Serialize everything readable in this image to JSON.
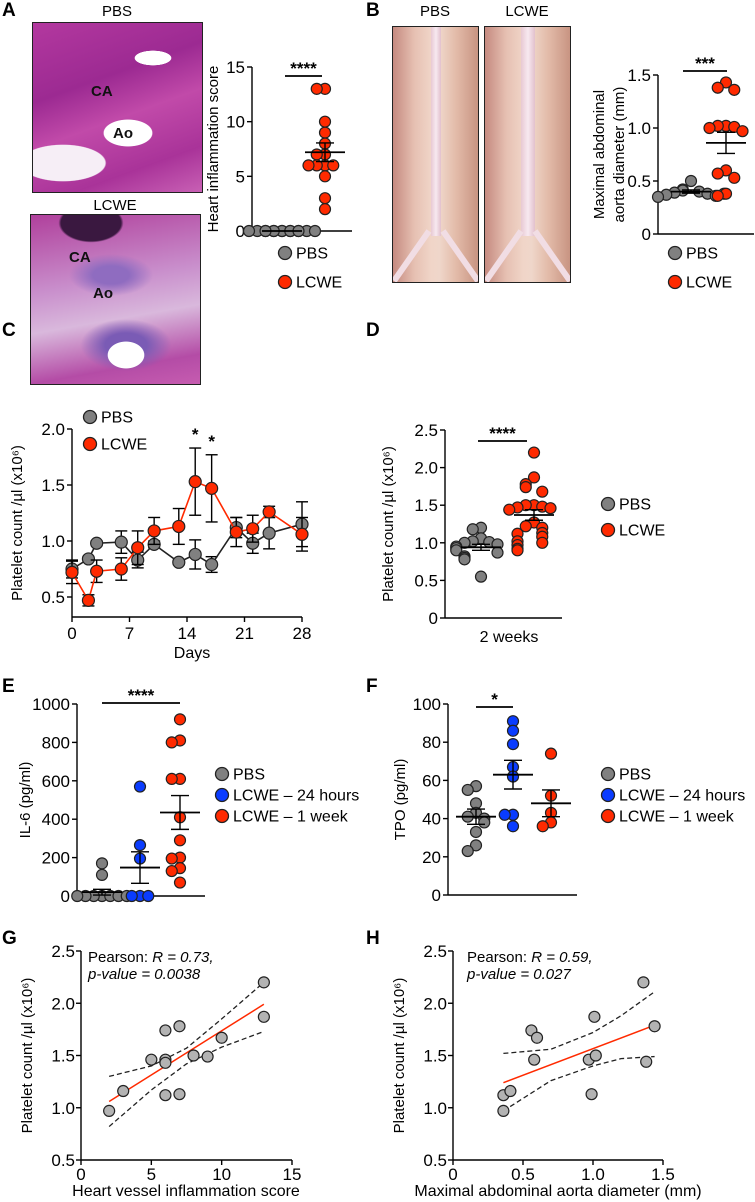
{
  "panels": {
    "a": "A",
    "b": "B",
    "c": "C",
    "d": "D",
    "e": "E",
    "f": "F",
    "g": "G",
    "h": "H"
  },
  "images": {
    "a_pbs_title": "PBS",
    "a_lcwe_title": "LCWE",
    "ca": "CA",
    "ao": "Ao",
    "b_pbs_title": "PBS",
    "b_lcwe_title": "LCWE"
  },
  "colors": {
    "pbs": "#808080",
    "lcwe": "#ff2a00",
    "lcwe24": "#0a3cff",
    "fit": "#ff2a00"
  },
  "chart_data": [
    {
      "id": "A",
      "type": "scatter",
      "ylabel": [
        "Heart inflammation score"
      ],
      "ylim": [
        0,
        15
      ],
      "yticks": [
        "0",
        "5",
        "10",
        "15"
      ],
      "significance": "****",
      "groups": [
        {
          "name": "PBS",
          "color": "#808080",
          "values": [
            0,
            0,
            0,
            0,
            0,
            0,
            0,
            0,
            0,
            0,
            0,
            0,
            0,
            0
          ],
          "mean": 0,
          "sem": 0
        },
        {
          "name": "LCWE",
          "color": "#ff2a00",
          "values": [
            13,
            13,
            10,
            9,
            8,
            7,
            7,
            6,
            6,
            6,
            6,
            5,
            3,
            2
          ],
          "mean": 7.2,
          "sem": 0.85
        }
      ]
    },
    {
      "id": "B",
      "type": "scatter",
      "ylabel": [
        "Maximal abdominal",
        "aorta diameter (mm)"
      ],
      "ylim": [
        0,
        1.5
      ],
      "yticks": [
        "0",
        "0.5",
        "1.0",
        "1.5"
      ],
      "significance": "***",
      "groups": [
        {
          "name": "PBS",
          "color": "#808080",
          "values": [
            0.5,
            0.42,
            0.41,
            0.4,
            0.39,
            0.38,
            0.37,
            0.36,
            0.35,
            0.38
          ],
          "mean": 0.4,
          "sem": 0.015
        },
        {
          "name": "LCWE",
          "color": "#ff2a00",
          "values": [
            1.43,
            1.38,
            1.36,
            1.02,
            1.02,
            1.01,
            1.0,
            0.97,
            0.6,
            0.57,
            0.53,
            0.38,
            0.36
          ],
          "mean": 0.86,
          "sem": 0.1
        }
      ]
    },
    {
      "id": "C",
      "type": "line",
      "ylabel": [
        "Platelet count /µl (x10⁶)"
      ],
      "xlabel": "Days",
      "ylim": [
        0.3,
        2.0
      ],
      "yticks": [
        "0.5",
        "1.0",
        "1.5",
        "2.0"
      ],
      "xlim": [
        0,
        28
      ],
      "xticks": [
        "0",
        "7",
        "14",
        "21",
        "28"
      ],
      "x": [
        0,
        2,
        3,
        6,
        8,
        10,
        13,
        15,
        17,
        20,
        22,
        24,
        28
      ],
      "annotations": [
        {
          "x": 15,
          "text": "*"
        },
        {
          "x": 17,
          "text": "*"
        }
      ],
      "series": [
        {
          "name": "PBS",
          "color": "#808080",
          "values": [
            0.75,
            0.84,
            0.98,
            0.99,
            0.83,
            0.97,
            0.81,
            0.88,
            0.79,
            1.12,
            0.98,
            1.07,
            1.15
          ],
          "err": [
            0.08,
            0.02,
            0.02,
            0.1,
            0.07,
            0.03,
            0.02,
            0.13,
            0.07,
            0.09,
            0.09,
            0.14,
            0.2
          ]
        },
        {
          "name": "LCWE",
          "color": "#ff2a00",
          "values": [
            0.72,
            0.47,
            0.73,
            0.75,
            0.94,
            1.09,
            1.13,
            1.53,
            1.47,
            1.08,
            1.11,
            1.26,
            1.06
          ],
          "err": [
            0.1,
            0.05,
            0.1,
            0.1,
            0.15,
            0.12,
            0.16,
            0.3,
            0.3,
            0.13,
            0.12,
            0.05,
            0.15
          ]
        }
      ]
    },
    {
      "id": "D",
      "type": "scatter",
      "ylabel": [
        "Platelet count /µl (x10⁶)"
      ],
      "xlabel": "2 weeks",
      "ylim": [
        0,
        2.5
      ],
      "yticks": [
        "0",
        "0.5",
        "1.0",
        "1.5",
        "2.0",
        "2.5"
      ],
      "significance": "****",
      "groups": [
        {
          "name": "PBS",
          "color": "#808080",
          "values": [
            1.2,
            1.18,
            1.06,
            1.02,
            1.01,
            1.0,
            0.98,
            0.95,
            0.93,
            0.9,
            0.87,
            0.82,
            0.8,
            0.78,
            0.55
          ],
          "mean": 0.94,
          "sem": 0.04
        },
        {
          "name": "LCWE",
          "color": "#ff2a00",
          "values": [
            2.2,
            1.87,
            1.78,
            1.74,
            1.68,
            1.5,
            1.5,
            1.48,
            1.47,
            1.46,
            1.44,
            1.27,
            1.22,
            1.2,
            1.13,
            1.12,
            1.08,
            1.02,
            1.0,
            0.97,
            0.92,
            0.9
          ],
          "mean": 1.37,
          "sem": 0.07
        }
      ]
    },
    {
      "id": "E",
      "type": "scatter",
      "ylabel": [
        "IL-6 (pg/ml)"
      ],
      "ylim": [
        0,
        1000
      ],
      "yticks": [
        "0",
        "200",
        "400",
        "600",
        "800",
        "1000"
      ],
      "significance": "****",
      "sig_between": [
        0,
        2
      ],
      "groups": [
        {
          "name": "PBS",
          "color": "#808080",
          "values": [
            170,
            110,
            0,
            0,
            0,
            0,
            0,
            0,
            0
          ],
          "mean": 20,
          "sem": 15
        },
        {
          "name": "LCWE – 24 hours",
          "color": "#0a3cff",
          "values": [
            570,
            265,
            195,
            0,
            0,
            0
          ],
          "mean": 148,
          "sem": 82
        },
        {
          "name": "LCWE – 1 week",
          "color": "#ff2a00",
          "values": [
            920,
            810,
            800,
            610,
            610,
            410,
            290,
            200,
            195,
            145,
            130,
            70
          ],
          "mean": 435,
          "sem": 88
        }
      ]
    },
    {
      "id": "F",
      "type": "scatter",
      "ylabel": [
        "TPO (pg/ml)"
      ],
      "ylim": [
        0,
        100
      ],
      "yticks": [
        "0",
        "20",
        "40",
        "60",
        "80",
        "100"
      ],
      "significance": "*",
      "sig_between": [
        0,
        1
      ],
      "groups": [
        {
          "name": "PBS",
          "color": "#808080",
          "values": [
            57,
            55,
            48,
            43,
            41,
            40,
            38,
            33,
            26,
            23
          ],
          "mean": 41,
          "sem": 4
        },
        {
          "name": "LCWE – 24 hours",
          "color": "#0a3cff",
          "values": [
            91,
            86,
            79,
            67,
            62,
            42,
            42,
            36
          ],
          "mean": 63,
          "sem": 7.5
        },
        {
          "name": "LCWE – 1 week",
          "color": "#ff2a00",
          "values": [
            74,
            52,
            43,
            38,
            36
          ],
          "mean": 48,
          "sem": 7
        }
      ]
    },
    {
      "id": "G",
      "type": "scatter",
      "ylabel": [
        "Platelet count /µl (x10⁶)"
      ],
      "xlabel": "Heart vessel inflammation score",
      "xlim": [
        0,
        15
      ],
      "xticks": [
        "0",
        "5",
        "10",
        "15"
      ],
      "ylim": [
        0.5,
        2.5
      ],
      "yticks": [
        "0.5",
        "1.0",
        "1.5",
        "2.0",
        "2.5"
      ],
      "annotation": {
        "prefix": "Pearson: ",
        "r": "R = 0.73,",
        "p": "p-value = 0.0038"
      },
      "points": [
        [
          2,
          0.97
        ],
        [
          3,
          1.16
        ],
        [
          5,
          1.46
        ],
        [
          6,
          1.74
        ],
        [
          6,
          1.46
        ],
        [
          6,
          1.43
        ],
        [
          6,
          1.12
        ],
        [
          7,
          1.78
        ],
        [
          7,
          1.13
        ],
        [
          8,
          1.5
        ],
        [
          9,
          1.49
        ],
        [
          10,
          1.67
        ],
        [
          13,
          2.2
        ],
        [
          13,
          1.87
        ]
      ],
      "fit": [
        [
          2,
          1.06
        ],
        [
          13,
          1.99
        ]
      ],
      "ci_upper": [
        [
          2,
          1.3
        ],
        [
          5,
          1.4
        ],
        [
          7.5,
          1.57
        ],
        [
          10,
          1.85
        ],
        [
          13,
          2.2
        ]
      ],
      "ci_lower": [
        [
          2,
          0.82
        ],
        [
          5,
          1.17
        ],
        [
          7.5,
          1.42
        ],
        [
          10,
          1.58
        ],
        [
          13,
          1.73
        ]
      ]
    },
    {
      "id": "H",
      "type": "scatter",
      "ylabel": [
        "Platelet count /µl (x10⁶)"
      ],
      "xlabel": "Maximal abdominal aorta diameter (mm)",
      "xlim": [
        0,
        1.5
      ],
      "xticks": [
        "0",
        "0.5",
        "1.0",
        "1.5"
      ],
      "ylim": [
        0.5,
        2.5
      ],
      "yticks": [
        "0.5",
        "1.0",
        "1.5",
        "2.0",
        "2.5"
      ],
      "annotation": {
        "prefix": "Pearson: ",
        "r": "R = 0.59,",
        "p": "p-value = 0.027"
      },
      "points": [
        [
          0.36,
          1.12
        ],
        [
          0.36,
          0.97
        ],
        [
          0.41,
          1.16
        ],
        [
          0.56,
          1.74
        ],
        [
          0.58,
          1.46
        ],
        [
          0.6,
          1.67
        ],
        [
          0.97,
          1.46
        ],
        [
          0.99,
          1.13
        ],
        [
          1.01,
          1.87
        ],
        [
          1.02,
          1.5
        ],
        [
          1.36,
          2.2
        ],
        [
          1.38,
          1.44
        ],
        [
          1.44,
          1.78
        ]
      ],
      "fit": [
        [
          0.36,
          1.24
        ],
        [
          1.44,
          1.79
        ]
      ],
      "ci_upper": [
        [
          0.36,
          1.52
        ],
        [
          0.7,
          1.56
        ],
        [
          1.0,
          1.72
        ],
        [
          1.2,
          1.88
        ],
        [
          1.44,
          2.11
        ]
      ],
      "ci_lower": [
        [
          0.36,
          0.97
        ],
        [
          0.7,
          1.26
        ],
        [
          1.0,
          1.4
        ],
        [
          1.2,
          1.47
        ],
        [
          1.44,
          1.49
        ]
      ]
    }
  ]
}
